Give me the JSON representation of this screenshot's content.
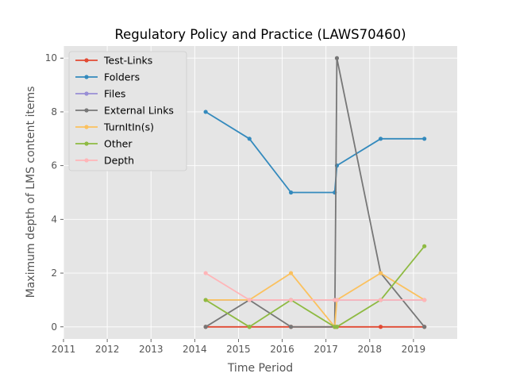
{
  "chart_data": {
    "type": "line",
    "title": "Regulatory Policy and Practice (LAWS70460)",
    "xlabel": "Time Period",
    "ylabel": "Maximum depth of LMS content items",
    "xlim": [
      2011,
      2020
    ],
    "ylim": [
      -0.45,
      10.45
    ],
    "xticks": [
      2011,
      2012,
      2013,
      2014,
      2015,
      2016,
      2017,
      2018,
      2019
    ],
    "yticks": [
      0,
      2,
      4,
      6,
      8,
      10
    ],
    "grid": true,
    "legend_position": "upper-left",
    "series": [
      {
        "name": "Test-Links",
        "color": "#E24A33",
        "x": [
          2014.25,
          2015.25,
          2016.2,
          2017.2,
          2017.25,
          2018.25,
          2019.25
        ],
        "y": [
          0,
          0,
          0,
          0,
          0,
          0,
          0
        ]
      },
      {
        "name": "Folders",
        "color": "#348ABD",
        "x": [
          2014.25,
          2015.25,
          2016.2,
          2017.2,
          2017.25,
          2018.25,
          2019.25
        ],
        "y": [
          8,
          7,
          5,
          5,
          6,
          7,
          7
        ]
      },
      {
        "name": "Files",
        "color": "#988ED5",
        "x": [
          2014.25,
          2015.25,
          2016.2,
          2017.2,
          2017.25,
          2018.25,
          2019.25
        ],
        "y": [
          1,
          1,
          1,
          1,
          1,
          1,
          1
        ]
      },
      {
        "name": "External Links",
        "color": "#777777",
        "x": [
          2014.25,
          2015.25,
          2016.2,
          2017.2,
          2017.25,
          2018.25,
          2019.25
        ],
        "y": [
          0,
          1,
          0,
          0,
          10,
          2,
          0
        ]
      },
      {
        "name": "TurnItIn(s)",
        "color": "#FBC15E",
        "x": [
          2014.25,
          2015.25,
          2016.2,
          2017.2,
          2017.25,
          2018.25,
          2019.25
        ],
        "y": [
          1,
          1,
          2,
          0,
          1,
          2,
          1
        ]
      },
      {
        "name": "Other",
        "color": "#8EBA42",
        "x": [
          2014.25,
          2015.25,
          2016.2,
          2017.2,
          2017.25,
          2018.25,
          2019.25
        ],
        "y": [
          1,
          0,
          1,
          0,
          0,
          1,
          3
        ]
      },
      {
        "name": "Depth",
        "color": "#FFB5B8",
        "x": [
          2014.25,
          2015.25,
          2016.2,
          2017.2,
          2017.25,
          2018.25,
          2019.25
        ],
        "y": [
          2,
          1,
          1,
          1,
          1,
          1,
          1
        ]
      }
    ]
  }
}
